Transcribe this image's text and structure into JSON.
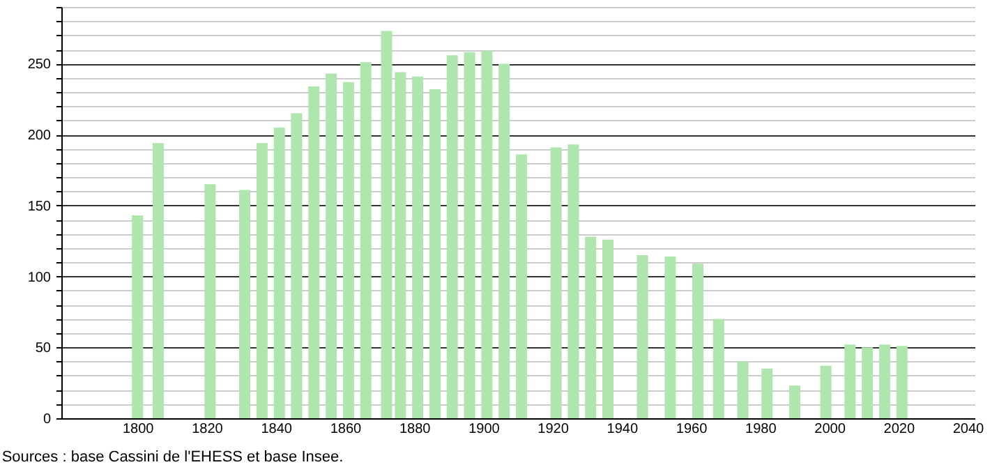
{
  "chart_data": {
    "type": "bar",
    "color": "#aee6ae",
    "x": [
      1800,
      1806,
      1821,
      1831,
      1836,
      1841,
      1846,
      1851,
      1856,
      1861,
      1866,
      1872,
      1876,
      1881,
      1886,
      1891,
      1896,
      1901,
      1906,
      1911,
      1921,
      1926,
      1931,
      1936,
      1946,
      1954,
      1962,
      1968,
      1975,
      1982,
      1990,
      1999,
      2006,
      2011,
      2016,
      2021
    ],
    "values": [
      143,
      194,
      165,
      161,
      194,
      205,
      215,
      234,
      243,
      237,
      251,
      273,
      244,
      241,
      232,
      256,
      258,
      259,
      250,
      186,
      191,
      193,
      128,
      126,
      115,
      114,
      109,
      70,
      40,
      35,
      23,
      37,
      52,
      50,
      52,
      51
    ],
    "xlim": [
      1780,
      2040
    ],
    "xticks": [
      1800,
      1820,
      1840,
      1860,
      1880,
      1900,
      1920,
      1940,
      1960,
      1980,
      2000,
      2020,
      2040
    ],
    "ylim": [
      0,
      290
    ],
    "yticks": [
      0,
      {
        "value": 10,
        "label": null
      },
      {
        "value": 20,
        "label": null
      },
      {
        "value": 30,
        "label": null
      },
      {
        "value": 40,
        "label": null
      },
      50,
      {
        "value": 60,
        "label": null
      },
      {
        "value": 70,
        "label": null
      },
      {
        "value": 80,
        "label": null
      },
      {
        "value": 90,
        "label": null
      },
      100,
      {
        "value": 110,
        "label": null
      },
      {
        "value": 120,
        "label": null
      },
      {
        "value": 130,
        "label": null
      },
      {
        "value": 140,
        "label": null
      },
      150,
      {
        "value": 160,
        "label": null
      },
      {
        "value": 170,
        "label": null
      },
      {
        "value": 180,
        "label": null
      },
      {
        "value": 190,
        "label": null
      },
      200,
      {
        "value": 210,
        "label": null
      },
      {
        "value": 220,
        "label": null
      },
      {
        "value": 230,
        "label": null
      },
      {
        "value": 240,
        "label": null
      },
      250,
      {
        "value": 260,
        "label": null
      },
      {
        "value": 270,
        "label": null
      },
      {
        "value": 280,
        "label": null
      },
      {
        "value": 290,
        "label": null
      }
    ],
    "grid": "y",
    "annotations": [
      "Sources : base Cassini de l'EHESS et base Insee."
    ]
  }
}
